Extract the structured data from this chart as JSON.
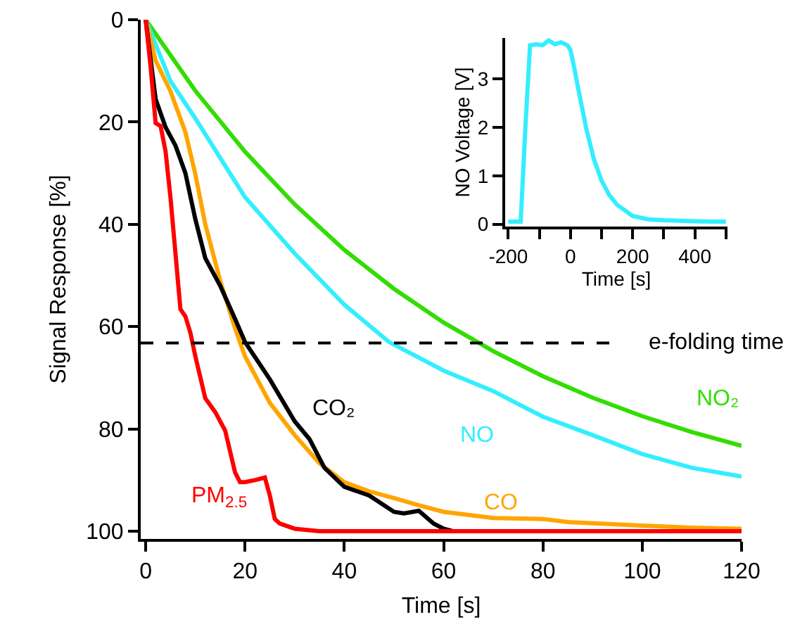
{
  "chart_data": [
    {
      "type": "line",
      "xlabel": "Time [s]",
      "ylabel": "Signal Response [%]",
      "xlim": [
        -1,
        120
      ],
      "ylim": [
        101.5,
        0
      ],
      "xticks": [
        0,
        20,
        40,
        60,
        80,
        100,
        120
      ],
      "yticks": [
        0,
        20,
        40,
        60,
        80,
        100
      ],
      "grid": false,
      "legend": false,
      "ref_lines": [
        {
          "axis": "y",
          "value": 63.2,
          "label": "e-folding time",
          "color": "#000000",
          "line_style": "dashed"
        }
      ],
      "series": [
        {
          "name": "NO₂",
          "color": "#33dd00",
          "x": [
            0,
            10,
            20,
            30,
            40,
            50,
            60,
            70,
            80,
            90,
            100,
            110,
            120
          ],
          "values": [
            0,
            13.9,
            25.8,
            36.1,
            45,
            52.6,
            59.2,
            64.8,
            69.7,
            73.9,
            77.5,
            80.6,
            83.3
          ]
        },
        {
          "name": "NO",
          "color": "#33eeff",
          "x": [
            0,
            5,
            10,
            20,
            30,
            40,
            49,
            60,
            70,
            80,
            90,
            100,
            110,
            120
          ],
          "values": [
            0,
            12,
            19.3,
            34.7,
            45.7,
            55.7,
            63,
            68.6,
            72.6,
            77.6,
            81.2,
            84.9,
            87.6,
            89.3
          ]
        },
        {
          "name": "CO",
          "color": "#ffa500",
          "x": [
            0,
            2,
            5,
            8,
            10,
            12,
            15,
            18,
            20,
            25,
            30,
            35,
            40,
            45,
            50,
            55,
            60,
            70,
            80,
            85,
            100,
            110,
            120
          ],
          "values": [
            0,
            8,
            14,
            22,
            30.2,
            40,
            51,
            60.3,
            65.8,
            74.9,
            81.2,
            86.7,
            90.4,
            92.2,
            93.5,
            94.9,
            96.2,
            97.4,
            97.6,
            98.2,
            98.9,
            99.3,
            99.5
          ]
        },
        {
          "name": "CO₂",
          "color": "#000000",
          "x": [
            0,
            2,
            4,
            6,
            8,
            10,
            12,
            15,
            18,
            20,
            25,
            30,
            33,
            36,
            40,
            45,
            50,
            52,
            55,
            58,
            60,
            62
          ],
          "values": [
            0,
            15.5,
            21,
            24.6,
            30,
            39,
            46.6,
            52,
            58.5,
            63,
            70.3,
            78.5,
            82,
            87.6,
            91.3,
            93,
            96.2,
            96.5,
            96,
            98.5,
            99.5,
            100
          ]
        },
        {
          "name": "PM$_{2.5}$",
          "color": "#ff0000",
          "x": [
            0,
            1,
            2,
            3,
            4,
            5,
            6,
            7,
            8,
            9,
            10,
            12,
            14,
            16,
            18,
            19,
            20,
            22,
            24,
            25,
            26,
            27,
            30,
            35,
            120
          ],
          "values": [
            0,
            9.3,
            20.2,
            20.8,
            25.7,
            34.8,
            45.7,
            56.6,
            58,
            61.2,
            65.8,
            74,
            76.7,
            80.3,
            88.5,
            90.4,
            90.4,
            90,
            89.5,
            93,
            97.6,
            98.5,
            99.5,
            100,
            100
          ]
        }
      ]
    },
    {
      "type": "line",
      "xlabel": "Time [s]",
      "ylabel": "NO Voltage [V]",
      "xlim": [
        -210,
        505
      ],
      "ylim": [
        -0.05,
        3.85
      ],
      "xticks": [
        -200,
        {
          "value": -100,
          "label": null
        },
        0,
        {
          "value": 100,
          "label": null
        },
        200,
        {
          "value": 300,
          "label": null
        },
        400,
        {
          "value": 500,
          "label": null
        }
      ],
      "yticks": [
        0,
        1,
        2,
        3
      ],
      "grid": false,
      "legend": false,
      "series": [
        {
          "color": "#33eeff",
          "x": [
            -200,
            -170,
            -160,
            -145,
            -130,
            -110,
            -90,
            -70,
            -50,
            -30,
            -10,
            0,
            10,
            25,
            50,
            75,
            100,
            125,
            150,
            200,
            250,
            300,
            400,
            500
          ],
          "values": [
            0.05,
            0.05,
            0.05,
            2,
            3.7,
            3.72,
            3.7,
            3.8,
            3.72,
            3.76,
            3.7,
            3.6,
            3.3,
            2.8,
            2,
            1.35,
            0.9,
            0.6,
            0.4,
            0.17,
            0.1,
            0.08,
            0.06,
            0.05
          ]
        }
      ]
    }
  ]
}
